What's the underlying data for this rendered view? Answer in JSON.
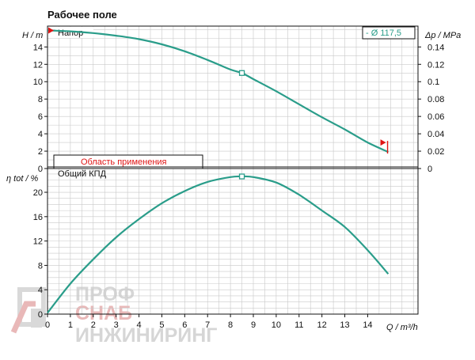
{
  "page_title": "Рабочее поле",
  "colors": {
    "curve": "#2a9d8a",
    "grid": "#c9c9c9",
    "marker": "#e01515",
    "watermark": "#d9d9d9",
    "watermark_accent": "#e9b8b8"
  },
  "top": {
    "curve_label": "Напор",
    "diameter_label": "- Ø 117,5",
    "application_range_label": "Область применения",
    "y_left_label": "H / m",
    "y_right_label": "Δp / MPa",
    "y_left_ticks": [
      "0",
      "2",
      "4",
      "6",
      "8",
      "10",
      "12",
      "14"
    ],
    "y_right_ticks": [
      "0",
      "0.02",
      "0.04",
      "0.06",
      "0.08",
      "0.1",
      "0.12",
      "0.14"
    ]
  },
  "bottom": {
    "curve_label": "Общий КПД",
    "y_label": "η tot / %",
    "y_ticks": [
      "0",
      "4",
      "8",
      "12",
      "16",
      "20"
    ],
    "x_label": "Q / m³/h",
    "x_ticks": [
      "0",
      "1",
      "2",
      "3",
      "4",
      "5",
      "6",
      "7",
      "8",
      "9",
      "10",
      "11",
      "12",
      "13",
      "14"
    ]
  },
  "watermark": {
    "line1": "ПРОФ",
    "line2": "СНАБ",
    "line3": "ИНЖИНИРИНГ"
  },
  "chart_data": [
    {
      "type": "line",
      "title": "Напор",
      "xlabel": "Q / m³/h",
      "ylabel": "H / m",
      "y2label": "Δp / MPa",
      "xlim": [
        0,
        16.2
      ],
      "ylim": [
        0,
        16.4
      ],
      "y2lim": [
        0,
        0.164
      ],
      "grid": true,
      "series": [
        {
          "name": "Напор",
          "x": [
            0,
            1,
            2,
            3,
            4,
            5,
            6,
            7,
            8,
            8.5,
            9,
            10,
            11,
            12,
            13,
            14,
            14.9
          ],
          "y": [
            15.9,
            15.8,
            15.6,
            15.3,
            14.9,
            14.3,
            13.5,
            12.5,
            11.4,
            11.0,
            10.3,
            8.9,
            7.4,
            5.9,
            4.5,
            3.0,
            1.9
          ]
        }
      ],
      "operating_point": {
        "x": 8.5,
        "y": 11.0
      },
      "markers": {
        "shutoff_head": 15.9,
        "end_head": 3.0
      },
      "application_range": [
        0.4,
        14.8
      ]
    },
    {
      "type": "line",
      "title": "Общий КПД",
      "xlabel": "Q / m³/h",
      "ylabel": "η tot / %",
      "xlim": [
        0,
        16.2
      ],
      "ylim": [
        0,
        23.9
      ],
      "grid": true,
      "series": [
        {
          "name": "Общий КПД",
          "x": [
            0,
            1,
            2,
            3,
            4,
            5,
            6,
            7,
            8,
            8.5,
            9,
            10,
            11,
            12,
            13,
            14,
            14.9
          ],
          "y": [
            0.2,
            5.0,
            9.0,
            12.6,
            15.6,
            18.2,
            20.2,
            21.7,
            22.5,
            22.6,
            22.5,
            21.6,
            19.6,
            17.0,
            14.3,
            10.5,
            6.6
          ]
        }
      ],
      "operating_point": {
        "x": 8.5,
        "y": 22.6
      }
    }
  ]
}
